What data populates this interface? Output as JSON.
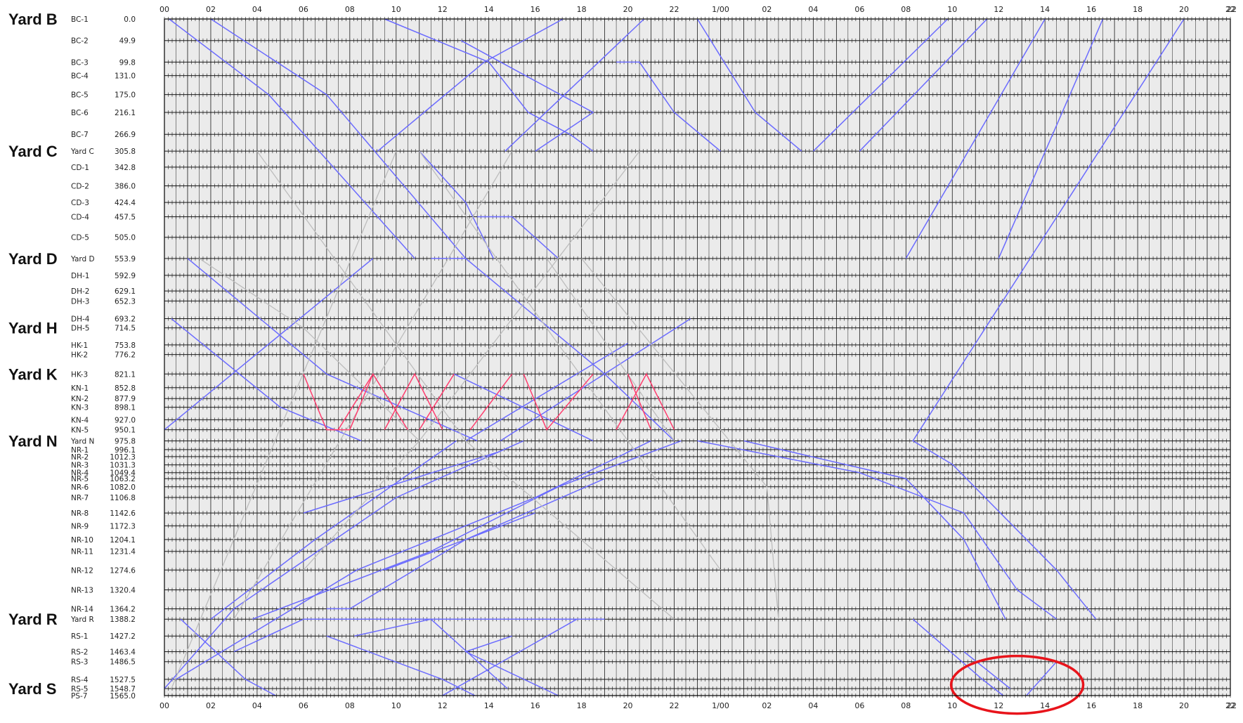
{
  "colors": {
    "background": "#ebebeb",
    "grid": "#1a1a1a",
    "train_blue": "#6b6bff",
    "train_gray": "#bdbdbd",
    "train_red": "#ff3d6e",
    "highlight": "#e8141b"
  },
  "chart_data": {
    "type": "line",
    "chart_kind": "time-distance train diagram",
    "x_axis": {
      "unit": "hours",
      "range": [
        0,
        46
      ],
      "grid": true,
      "tick_labels": [
        "00",
        "02",
        "04",
        "06",
        "08",
        "10",
        "12",
        "14",
        "16",
        "18",
        "20",
        "22",
        "1/00",
        "02",
        "04",
        "06",
        "08",
        "10",
        "12",
        "14",
        "16",
        "18",
        "20",
        "22"
      ]
    },
    "y_axis": {
      "unit": "distance",
      "range": [
        0,
        1565.0
      ],
      "reversed": true,
      "grid": true
    },
    "yards": [
      {
        "label": "Yard B",
        "at": 0.0
      },
      {
        "label": "Yard C",
        "at": 305.8
      },
      {
        "label": "Yard D",
        "at": 553.9
      },
      {
        "label": "Yard H",
        "at": 714.5
      },
      {
        "label": "Yard K",
        "at": 821.1
      },
      {
        "label": "Yard N",
        "at": 975.8
      },
      {
        "label": "Yard R",
        "at": 1388.2
      },
      {
        "label": "Yard S",
        "at": 1548.7
      }
    ],
    "stations": [
      {
        "name": "BC-1",
        "dist": "0.0",
        "v": 0.0
      },
      {
        "name": "BC-2",
        "dist": "49.9",
        "v": 49.9
      },
      {
        "name": "BC-3",
        "dist": "99.8",
        "v": 99.8
      },
      {
        "name": "BC-4",
        "dist": "131.0",
        "v": 131.0
      },
      {
        "name": "BC-5",
        "dist": "175.0",
        "v": 175.0
      },
      {
        "name": "BC-6",
        "dist": "216.1",
        "v": 216.1
      },
      {
        "name": "BC-7",
        "dist": "266.9",
        "v": 266.9
      },
      {
        "name": "Yard C",
        "dist": "305.8",
        "v": 305.8
      },
      {
        "name": "CD-1",
        "dist": "342.8",
        "v": 342.8
      },
      {
        "name": "CD-2",
        "dist": "386.0",
        "v": 386.0
      },
      {
        "name": "CD-3",
        "dist": "424.4",
        "v": 424.4
      },
      {
        "name": "CD-4",
        "dist": "457.5",
        "v": 457.5
      },
      {
        "name": "CD-5",
        "dist": "505.0",
        "v": 505.0
      },
      {
        "name": "Yard D",
        "dist": "553.9",
        "v": 553.9
      },
      {
        "name": "DH-1",
        "dist": "592.9",
        "v": 592.9
      },
      {
        "name": "DH-2",
        "dist": "629.1",
        "v": 629.1
      },
      {
        "name": "DH-3",
        "dist": "652.3",
        "v": 652.3
      },
      {
        "name": "DH-4",
        "dist": "693.2",
        "v": 693.2
      },
      {
        "name": "DH-5",
        "dist": "714.5",
        "v": 714.5
      },
      {
        "name": "HK-1",
        "dist": "753.8",
        "v": 753.8
      },
      {
        "name": "HK-2",
        "dist": "776.2",
        "v": 776.2
      },
      {
        "name": "HK-3",
        "dist": "821.1",
        "v": 821.1
      },
      {
        "name": "KN-1",
        "dist": "852.8",
        "v": 852.8
      },
      {
        "name": "KN-2",
        "dist": "877.9",
        "v": 877.9
      },
      {
        "name": "KN-3",
        "dist": "898.1",
        "v": 898.1
      },
      {
        "name": "KN-4",
        "dist": "927.0",
        "v": 927.0
      },
      {
        "name": "KN-5",
        "dist": "950.1",
        "v": 950.1
      },
      {
        "name": "Yard N",
        "dist": "975.8",
        "v": 975.8
      },
      {
        "name": "NR-1",
        "dist": "996.1",
        "v": 996.1
      },
      {
        "name": "NR-2",
        "dist": "1012.3",
        "v": 1012.3
      },
      {
        "name": "NR-3",
        "dist": "1031.3",
        "v": 1031.3
      },
      {
        "name": "NR-4",
        "dist": "1049.4",
        "v": 1049.4
      },
      {
        "name": "NR-5",
        "dist": "1063.2",
        "v": 1063.2
      },
      {
        "name": "NR-6",
        "dist": "1082.0",
        "v": 1082.0
      },
      {
        "name": "NR-7",
        "dist": "1106.8",
        "v": 1106.8
      },
      {
        "name": "NR-8",
        "dist": "1142.6",
        "v": 1142.6
      },
      {
        "name": "NR-9",
        "dist": "1172.3",
        "v": 1172.3
      },
      {
        "name": "NR-10",
        "dist": "1204.1",
        "v": 1204.1
      },
      {
        "name": "NR-11",
        "dist": "1231.4",
        "v": 1231.4
      },
      {
        "name": "NR-12",
        "dist": "1274.6",
        "v": 1274.6
      },
      {
        "name": "NR-13",
        "dist": "1320.4",
        "v": 1320.4
      },
      {
        "name": "NR-14",
        "dist": "1364.2",
        "v": 1364.2
      },
      {
        "name": "Yard R",
        "dist": "1388.2",
        "v": 1388.2
      },
      {
        "name": "RS-1",
        "dist": "1427.2",
        "v": 1427.2
      },
      {
        "name": "RS-2",
        "dist": "1463.4",
        "v": 1463.4
      },
      {
        "name": "RS-3",
        "dist": "1486.5",
        "v": 1486.5
      },
      {
        "name": "RS-4",
        "dist": "1527.5",
        "v": 1527.5
      },
      {
        "name": "RS-5",
        "dist": "1548.7",
        "v": 1548.7
      },
      {
        "name": "PS-7",
        "dist": "1565.0",
        "v": 1565.0
      }
    ],
    "series": [
      {
        "color": "blue",
        "points": [
          [
            0.2,
            0
          ],
          [
            4.5,
            175
          ],
          [
            10.8,
            553.9
          ]
        ]
      },
      {
        "color": "blue",
        "points": [
          [
            2,
            0
          ],
          [
            7,
            175
          ],
          [
            13,
            553.9
          ]
        ]
      },
      {
        "color": "blue",
        "points": [
          [
            9.5,
            0
          ],
          [
            14,
            99.8
          ],
          [
            15.7,
            216.1
          ],
          [
            17.5,
            266.9
          ],
          [
            18.5,
            305.8
          ]
        ]
      },
      {
        "color": "blue",
        "points": [
          [
            17.2,
            0
          ],
          [
            13.8,
            99.8
          ],
          [
            9.2,
            305.8
          ]
        ]
      },
      {
        "color": "blue",
        "points": [
          [
            23,
            0
          ],
          [
            25.5,
            216.1
          ],
          [
            27.5,
            305.8
          ]
        ]
      },
      {
        "color": "blue",
        "points": [
          [
            19.5,
            99.8
          ],
          [
            20.5,
            99.8
          ],
          [
            22,
            216.1
          ],
          [
            24,
            305.8
          ]
        ]
      },
      {
        "color": "blue",
        "points": [
          [
            20.7,
            0
          ],
          [
            14.7,
            305.8
          ]
        ]
      },
      {
        "color": "blue",
        "points": [
          [
            12.8,
            49.9
          ],
          [
            18.5,
            216.1
          ],
          [
            16,
            305.8
          ]
        ]
      },
      {
        "color": "blue",
        "points": [
          [
            33.8,
            0
          ],
          [
            28,
            305.8
          ]
        ]
      },
      {
        "color": "blue",
        "points": [
          [
            35.5,
            0
          ],
          [
            30,
            305.8
          ]
        ]
      },
      {
        "color": "blue",
        "points": [
          [
            38,
            0
          ],
          [
            32,
            553.9
          ]
        ]
      },
      {
        "color": "blue",
        "points": [
          [
            40.5,
            0
          ],
          [
            36,
            553.9
          ]
        ]
      },
      {
        "color": "blue",
        "points": [
          [
            44,
            0
          ],
          [
            32.3,
            975.8
          ],
          [
            34,
            1030
          ],
          [
            38.5,
            1274.6
          ],
          [
            40.2,
            1388.2
          ]
        ]
      },
      {
        "color": "blue",
        "points": [
          [
            11,
            305.8
          ],
          [
            13,
            424.4
          ],
          [
            14.2,
            553.9
          ]
        ]
      },
      {
        "color": "blue",
        "points": [
          [
            13.5,
            457.5
          ],
          [
            15,
            457.5
          ],
          [
            17,
            553.9
          ]
        ]
      },
      {
        "color": "blue",
        "points": [
          [
            11.5,
            553.9
          ],
          [
            13,
            553.9
          ],
          [
            19,
            821.1
          ],
          [
            22,
            975.8
          ]
        ]
      },
      {
        "color": "blue",
        "points": [
          [
            1,
            553.9
          ],
          [
            7,
            821.1
          ],
          [
            13.5,
            975.8
          ]
        ]
      },
      {
        "color": "blue",
        "points": [
          [
            0.3,
            693.2
          ],
          [
            5,
            898.1
          ],
          [
            8.5,
            975.8
          ]
        ]
      },
      {
        "color": "blue",
        "points": [
          [
            9,
            553.9
          ],
          [
            0,
            950.1
          ]
        ]
      },
      {
        "color": "blue",
        "points": [
          [
            22.7,
            693.2
          ],
          [
            14.5,
            975.8
          ]
        ]
      },
      {
        "color": "blue",
        "points": [
          [
            20,
            750
          ],
          [
            13,
            975.8
          ]
        ]
      },
      {
        "color": "blue",
        "points": [
          [
            12.5,
            821.1
          ],
          [
            18.5,
            975.8
          ]
        ]
      },
      {
        "color": "blue",
        "points": [
          [
            22.3,
            975.8
          ],
          [
            17,
            1082
          ],
          [
            11.5,
            1231.4
          ],
          [
            3.8,
            1388.2
          ]
        ]
      },
      {
        "color": "blue",
        "points": [
          [
            21,
            975.8
          ],
          [
            16,
            1106.8
          ],
          [
            8.3,
            1274.6
          ],
          [
            0.5,
            1527.5
          ]
        ]
      },
      {
        "color": "blue",
        "points": [
          [
            15.5,
            975.8
          ],
          [
            10,
            1106.8
          ],
          [
            3,
            1364.2
          ],
          [
            0,
            1548.7
          ]
        ]
      },
      {
        "color": "blue",
        "points": [
          [
            12.6,
            975.8
          ],
          [
            6.5,
            1204.1
          ],
          [
            2,
            1388.2
          ]
        ]
      },
      {
        "color": "blue",
        "points": [
          [
            14.5,
            1000
          ],
          [
            6,
            1142.6
          ]
        ]
      },
      {
        "color": "blue",
        "points": [
          [
            19,
            1063.2
          ],
          [
            13,
            1204.1
          ],
          [
            9.5,
            1274.6
          ]
        ]
      },
      {
        "color": "blue",
        "points": [
          [
            7,
            1364.2
          ],
          [
            8,
            1364.2
          ],
          [
            13,
            1204.1
          ],
          [
            16,
            1142.6
          ]
        ]
      },
      {
        "color": "blue",
        "points": [
          [
            23,
            975.8
          ],
          [
            30,
            1049.4
          ],
          [
            34.5,
            1142.6
          ],
          [
            36.8,
            1320.4
          ],
          [
            38.5,
            1388.2
          ]
        ]
      },
      {
        "color": "blue",
        "points": [
          [
            25,
            975.8
          ],
          [
            32,
            1063.2
          ],
          [
            34.5,
            1204.1
          ],
          [
            36.3,
            1388.2
          ]
        ]
      },
      {
        "color": "blue",
        "points": [
          [
            0.7,
            1388.2
          ],
          [
            3.5,
            1527.5
          ],
          [
            4.8,
            1565
          ]
        ]
      },
      {
        "color": "blue",
        "points": [
          [
            3,
            1463.4
          ],
          [
            6,
            1388.2
          ],
          [
            14,
            1388.2
          ],
          [
            19,
            1388.2
          ]
        ]
      },
      {
        "color": "blue",
        "points": [
          [
            8.2,
            1427.2
          ],
          [
            11.5,
            1388.2
          ],
          [
            14.8,
            1548.7
          ]
        ]
      },
      {
        "color": "blue",
        "points": [
          [
            7,
            1427.2
          ],
          [
            12,
            1527.5
          ],
          [
            13.4,
            1565
          ]
        ]
      },
      {
        "color": "blue",
        "points": [
          [
            17.8,
            1388.2
          ],
          [
            12,
            1565
          ]
        ]
      },
      {
        "color": "blue",
        "points": [
          [
            15,
            1427.2
          ],
          [
            13,
            1463.4
          ],
          [
            17,
            1565
          ]
        ]
      },
      {
        "color": "blue",
        "points": [
          [
            32.3,
            1388.2
          ],
          [
            35.3,
            1527.5
          ],
          [
            36.2,
            1565
          ]
        ]
      },
      {
        "color": "blue",
        "points": [
          [
            34.5,
            1463.4
          ],
          [
            36.5,
            1548.7
          ]
        ]
      },
      {
        "color": "blue",
        "points": [
          [
            38.5,
            1486.5
          ],
          [
            37.2,
            1565
          ]
        ]
      },
      {
        "color": "gray",
        "points": [
          [
            4,
            305.8
          ],
          [
            13,
            975.8
          ],
          [
            22,
            1388.2
          ]
        ]
      },
      {
        "color": "gray",
        "points": [
          [
            10,
            305.8
          ],
          [
            0.3,
            1548.7
          ]
        ]
      },
      {
        "color": "gray",
        "points": [
          [
            15,
            305.8
          ],
          [
            3,
            1388.2
          ]
        ]
      },
      {
        "color": "gray",
        "points": [
          [
            20.5,
            305.8
          ],
          [
            11,
            975.8
          ],
          [
            6,
            1274.6
          ]
        ]
      },
      {
        "color": "gray",
        "points": [
          [
            1.5,
            553.9
          ],
          [
            6,
            714.5
          ],
          [
            11,
            975.8
          ]
        ]
      },
      {
        "color": "gray",
        "points": [
          [
            16.5,
            553.9
          ],
          [
            22,
            975.8
          ]
        ]
      },
      {
        "color": "gray",
        "points": [
          [
            18,
            553.9
          ],
          [
            26,
            1082
          ],
          [
            26.5,
            1388.2
          ]
        ]
      },
      {
        "color": "gray",
        "points": [
          [
            11,
            305.8
          ],
          [
            20,
            975.8
          ],
          [
            24,
            1274.6
          ]
        ]
      },
      {
        "color": "red",
        "points": [
          [
            6,
            821.1
          ],
          [
            7,
            950.1
          ],
          [
            8,
            950.1
          ],
          [
            9,
            821.1
          ]
        ]
      },
      {
        "color": "red",
        "points": [
          [
            7.5,
            950.1
          ],
          [
            9,
            821.1
          ],
          [
            10.5,
            950.1
          ]
        ]
      },
      {
        "color": "red",
        "points": [
          [
            9.5,
            950.1
          ],
          [
            10.8,
            821.1
          ],
          [
            12,
            950.1
          ]
        ]
      },
      {
        "color": "red",
        "points": [
          [
            11,
            950.1
          ],
          [
            12.5,
            821.1
          ]
        ]
      },
      {
        "color": "red",
        "points": [
          [
            13.2,
            950.1
          ],
          [
            15,
            821.1
          ]
        ]
      },
      {
        "color": "red",
        "points": [
          [
            15.5,
            821.1
          ],
          [
            16.5,
            950.1
          ],
          [
            18.5,
            821.1
          ]
        ]
      },
      {
        "color": "red",
        "points": [
          [
            19.5,
            950.1
          ],
          [
            20.8,
            821.1
          ],
          [
            22,
            950.1
          ]
        ]
      },
      {
        "color": "red",
        "points": [
          [
            20,
            821.1
          ],
          [
            21,
            950.1
          ]
        ]
      }
    ]
  }
}
